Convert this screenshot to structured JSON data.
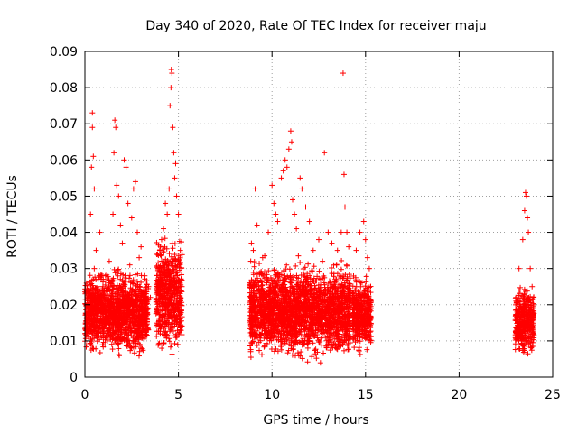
{
  "chart_data": {
    "type": "scatter",
    "title": "Day 340 of 2020, Rate Of TEC Index for receiver maju",
    "xlabel": "GPS time / hours",
    "ylabel": "ROTI / TECUs",
    "xlim": [
      0,
      25
    ],
    "ylim": [
      0,
      0.09
    ],
    "xticks": [
      "0",
      "5",
      "10",
      "15",
      "20",
      "25"
    ],
    "yticks": [
      "0",
      "0.01",
      "0.02",
      "0.03",
      "0.04",
      "0.05",
      "0.06",
      "0.07",
      "0.08",
      "0.09"
    ],
    "xtick_values": [
      0,
      5,
      10,
      15,
      20,
      25
    ],
    "ytick_values": [
      0,
      0.01,
      0.02,
      0.03,
      0.04,
      0.05,
      0.06,
      0.07,
      0.08,
      0.09
    ],
    "grid": true,
    "marker": "+",
    "color": "#ff0000",
    "series": [
      {
        "name": "",
        "points": [
          [
            0.1,
            0.012
          ],
          [
            0.2,
            0.018
          ],
          [
            0.3,
            0.045
          ],
          [
            0.35,
            0.058
          ],
          [
            0.4,
            0.073
          ],
          [
            0.4,
            0.069
          ],
          [
            0.45,
            0.061
          ],
          [
            0.5,
            0.052
          ],
          [
            0.5,
            0.03
          ],
          [
            0.6,
            0.035
          ],
          [
            0.7,
            0.025
          ],
          [
            0.8,
            0.04
          ],
          [
            0.9,
            0.015
          ],
          [
            1.0,
            0.022
          ],
          [
            1.1,
            0.028
          ],
          [
            1.2,
            0.01
          ],
          [
            1.3,
            0.032
          ],
          [
            1.4,
            0.02
          ],
          [
            1.5,
            0.045
          ],
          [
            1.55,
            0.062
          ],
          [
            1.6,
            0.071
          ],
          [
            1.65,
            0.069
          ],
          [
            1.7,
            0.053
          ],
          [
            1.8,
            0.05
          ],
          [
            1.9,
            0.042
          ],
          [
            2.0,
            0.037
          ],
          [
            2.1,
            0.06
          ],
          [
            2.2,
            0.058
          ],
          [
            2.3,
            0.048
          ],
          [
            2.4,
            0.031
          ],
          [
            2.5,
            0.044
          ],
          [
            2.6,
            0.052
          ],
          [
            2.7,
            0.054
          ],
          [
            2.8,
            0.04
          ],
          [
            2.9,
            0.033
          ],
          [
            3.0,
            0.036
          ],
          [
            3.2,
            0.028
          ],
          [
            3.4,
            0.025
          ],
          [
            3.5,
            0.022
          ],
          [
            3.9,
            0.03
          ],
          [
            4.0,
            0.035
          ],
          [
            4.1,
            0.038
          ],
          [
            4.2,
            0.041
          ],
          [
            4.3,
            0.048
          ],
          [
            4.4,
            0.045
          ],
          [
            4.5,
            0.052
          ],
          [
            4.55,
            0.075
          ],
          [
            4.6,
            0.08
          ],
          [
            4.62,
            0.085
          ],
          [
            4.65,
            0.084
          ],
          [
            4.7,
            0.069
          ],
          [
            4.75,
            0.062
          ],
          [
            4.8,
            0.055
          ],
          [
            4.85,
            0.059
          ],
          [
            4.9,
            0.05
          ],
          [
            5.0,
            0.045
          ],
          [
            5.1,
            0.035
          ],
          [
            8.9,
            0.037
          ],
          [
            9.0,
            0.035
          ],
          [
            9.1,
            0.052
          ],
          [
            9.2,
            0.042
          ],
          [
            9.5,
            0.033
          ],
          [
            9.8,
            0.04
          ],
          [
            10.0,
            0.053
          ],
          [
            10.1,
            0.048
          ],
          [
            10.2,
            0.045
          ],
          [
            10.3,
            0.043
          ],
          [
            10.5,
            0.055
          ],
          [
            10.6,
            0.057
          ],
          [
            10.7,
            0.06
          ],
          [
            10.8,
            0.058
          ],
          [
            10.9,
            0.063
          ],
          [
            11.0,
            0.068
          ],
          [
            11.05,
            0.065
          ],
          [
            11.1,
            0.049
          ],
          [
            11.2,
            0.045
          ],
          [
            11.3,
            0.041
          ],
          [
            11.5,
            0.055
          ],
          [
            11.6,
            0.052
          ],
          [
            11.8,
            0.047
          ],
          [
            12.0,
            0.043
          ],
          [
            12.2,
            0.035
          ],
          [
            12.5,
            0.038
          ],
          [
            12.8,
            0.062
          ],
          [
            13.0,
            0.04
          ],
          [
            13.2,
            0.037
          ],
          [
            13.5,
            0.035
          ],
          [
            13.7,
            0.04
          ],
          [
            13.8,
            0.084
          ],
          [
            13.85,
            0.056
          ],
          [
            13.9,
            0.047
          ],
          [
            14.0,
            0.04
          ],
          [
            14.1,
            0.036
          ],
          [
            14.5,
            0.035
          ],
          [
            14.7,
            0.04
          ],
          [
            14.9,
            0.043
          ],
          [
            15.0,
            0.038
          ],
          [
            15.1,
            0.033
          ],
          [
            15.2,
            0.03
          ],
          [
            23.2,
            0.03
          ],
          [
            23.4,
            0.038
          ],
          [
            23.5,
            0.046
          ],
          [
            23.55,
            0.051
          ],
          [
            23.6,
            0.05
          ],
          [
            23.65,
            0.044
          ],
          [
            23.7,
            0.04
          ],
          [
            23.8,
            0.03
          ],
          [
            23.9,
            0.025
          ]
        ],
        "clusters": [
          {
            "x": [
              0.0,
              3.4
            ],
            "y": [
              0.004,
              0.028
            ]
          },
          {
            "x": [
              3.8,
              5.2
            ],
            "y": [
              0.004,
              0.036
            ]
          },
          {
            "x": [
              8.8,
              14.2
            ],
            "y": [
              0.003,
              0.03
            ]
          },
          {
            "x": [
              14.3,
              15.3
            ],
            "y": [
              0.005,
              0.026
            ]
          },
          {
            "x": [
              23.0,
              24.0
            ],
            "y": [
              0.004,
              0.024
            ]
          }
        ]
      }
    ]
  }
}
